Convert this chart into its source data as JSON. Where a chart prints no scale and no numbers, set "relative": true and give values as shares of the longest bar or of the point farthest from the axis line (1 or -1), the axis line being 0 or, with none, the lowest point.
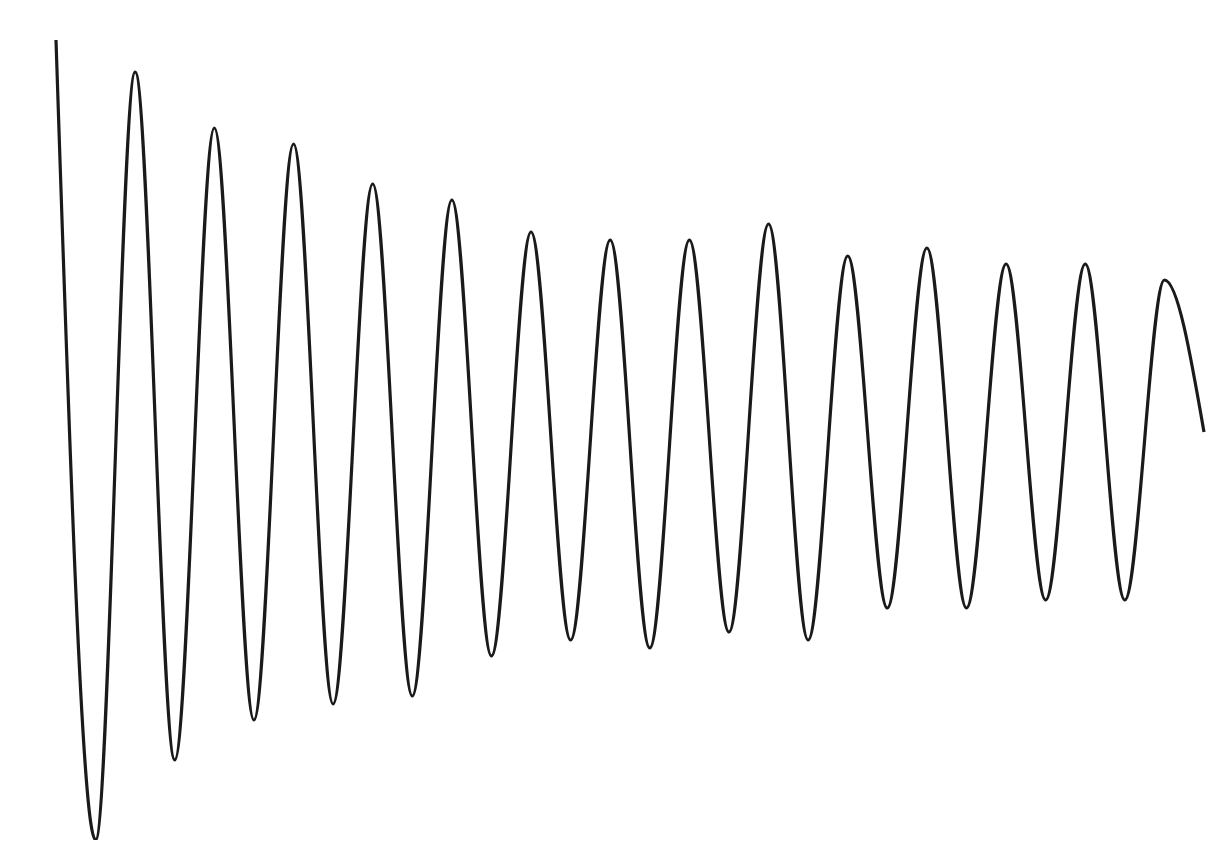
{
  "chart_data": {
    "type": "line",
    "relative": true,
    "color": "#1a1a1a",
    "categories": [
      null,
      null,
      null,
      null,
      null,
      null,
      null,
      null,
      null,
      null,
      null,
      null,
      null,
      null,
      null,
      null,
      null,
      null,
      null,
      null,
      null,
      null,
      null,
      null,
      null,
      null,
      null,
      null,
      null,
      null
    ],
    "values": [
      1.0,
      0,
      0.96,
      0.1,
      0.89,
      0.15,
      0.87,
      0.17,
      0.82,
      0.18,
      0.8,
      0.23,
      0.76,
      0.25,
      0.75,
      0.24,
      0.75,
      0.26,
      0.77,
      0.25,
      0.73,
      0.29,
      0.74,
      0.29,
      0.72,
      0.3,
      0.72,
      0.3,
      0.7,
      0.51
    ]
  }
}
